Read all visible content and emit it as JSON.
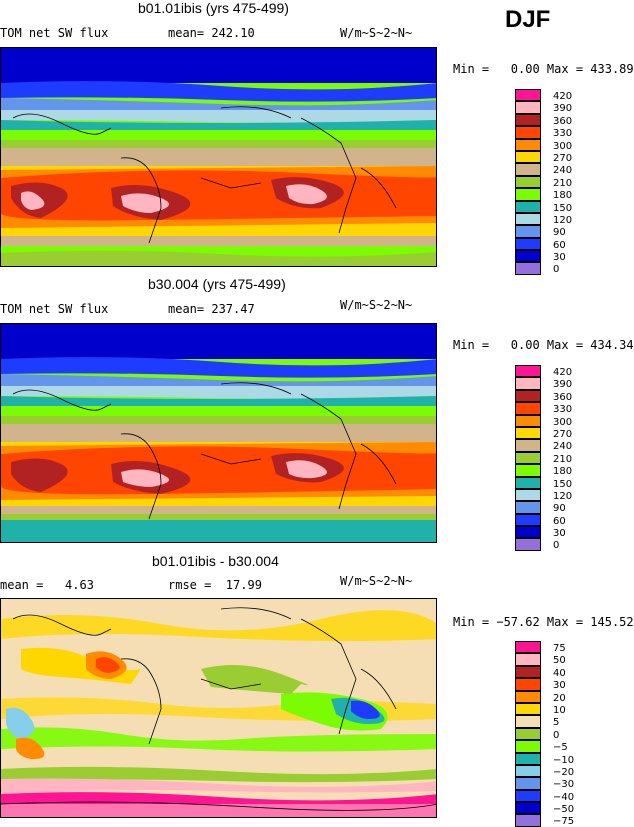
{
  "season": "DJF",
  "colors": {
    "abs": [
      "#ff1493",
      "#ffb6c1",
      "#b22222",
      "#ff4500",
      "#ff8c00",
      "#ffd700",
      "#d2b48c",
      "#9acd32",
      "#7cfc00",
      "#20b2aa",
      "#add8e6",
      "#6495ed",
      "#1e3cff",
      "#0000cd",
      "#9370db"
    ],
    "diff": [
      "#ff1493",
      "#ffb6c1",
      "#b22222",
      "#ff4500",
      "#ff8c00",
      "#ffd700",
      "#f5deb3",
      "#9acd32",
      "#7cfc00",
      "#20b2aa",
      "#87ceeb",
      "#6495ed",
      "#1e3cff",
      "#0000cd",
      "#9370db"
    ]
  },
  "panels": [
    {
      "title": "b01.01ibis (yrs 475-499)",
      "left_text": "TOM net SW flux",
      "mid_text": "mean= 242.10",
      "units": "W/m~S~2~N~",
      "minmax": "Min =   0.00 Max = 433.89",
      "legend": [
        "420",
        "390",
        "360",
        "330",
        "300",
        "270",
        "240",
        "210",
        "180",
        "150",
        "120",
        "90",
        "60",
        "30",
        "0"
      ],
      "palette": "abs"
    },
    {
      "title": "b30.004 (yrs 475-499)",
      "left_text": "TOM net SW flux",
      "mid_text": "mean= 237.47",
      "units": "W/m~S~2~N~",
      "minmax": "Min =   0.00 Max = 434.34",
      "legend": [
        "420",
        "390",
        "360",
        "330",
        "300",
        "270",
        "240",
        "210",
        "180",
        "150",
        "120",
        "90",
        "60",
        "30",
        "0"
      ],
      "palette": "abs"
    },
    {
      "title": "b01.01ibis - b30.004",
      "left_text": "mean =   4.63",
      "mid_text": "rmse =  17.99",
      "units": "W/m~S~2~N~",
      "minmax": "Min = −57.62 Max = 145.52",
      "legend": [
        "75",
        "50",
        "40",
        "30",
        "20",
        "10",
        "5",
        "0",
        "−5",
        "−10",
        "−20",
        "−30",
        "−40",
        "−50",
        "−75"
      ],
      "palette": "diff"
    }
  ]
}
